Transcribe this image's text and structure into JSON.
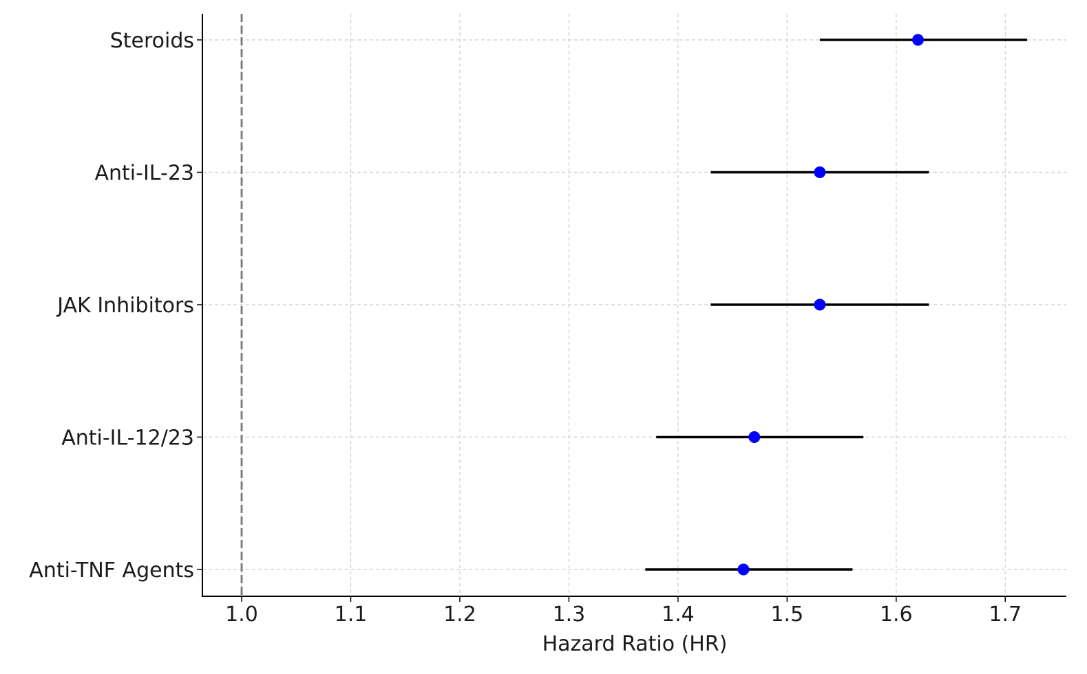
{
  "chart_data": {
    "type": "forest",
    "title": "",
    "xlabel": "Hazard Ratio (HR)",
    "ylabel": "",
    "xlim": [
      0.964,
      1.756
    ],
    "xticks": [
      1.0,
      1.1,
      1.2,
      1.3,
      1.4,
      1.5,
      1.6,
      1.7
    ],
    "xtick_labels": [
      "1.0",
      "1.1",
      "1.2",
      "1.3",
      "1.4",
      "1.5",
      "1.6",
      "1.7"
    ],
    "grid": true,
    "reference_line": 1.0,
    "categories": [
      "Anti-TNF Agents",
      "Anti-IL-12/23",
      "JAK Inhibitors",
      "Anti-IL-23",
      "Steroids"
    ],
    "hr": [
      1.46,
      1.47,
      1.53,
      1.53,
      1.62
    ],
    "ci_low": [
      1.37,
      1.38,
      1.43,
      1.43,
      1.53
    ],
    "ci_high": [
      1.56,
      1.57,
      1.63,
      1.63,
      1.72
    ],
    "colors": {
      "point": "#0000ff",
      "ci_line": "#000000",
      "reference_line": "#808080",
      "grid": "#cccccc",
      "axis": "#000000"
    }
  }
}
